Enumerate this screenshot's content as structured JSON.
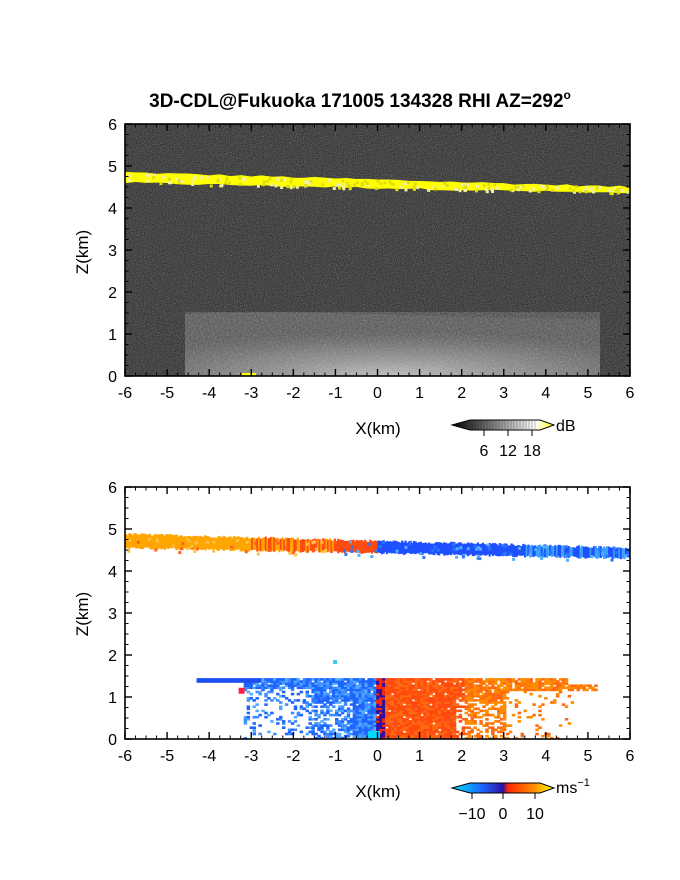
{
  "title": "3D-CDL@Fukuoka 171005 134328 RHI AZ=292",
  "title_superscript": "o",
  "chart_data": [
    {
      "type": "heatmap",
      "panel": "backscatter",
      "xlabel": "X(km)",
      "ylabel": "Z(km)",
      "xlim": [
        -6,
        6
      ],
      "ylim": [
        0,
        6
      ],
      "x_ticks": [
        "-6",
        "-5",
        "-4",
        "-3",
        "-2",
        "-1",
        "0",
        "1",
        "2",
        "3",
        "4",
        "5",
        "6"
      ],
      "y_ticks": [
        "0",
        "1",
        "2",
        "3",
        "4",
        "5",
        "6"
      ],
      "colorbar": {
        "unit": "dB",
        "ticks": [
          "6",
          "12",
          "18"
        ],
        "colors": [
          "#000000",
          "#ffffff",
          "#ffff00"
        ]
      },
      "background": "#1e1e1e",
      "cloud_layer": {
        "color": "#ffff00",
        "z_base": [
          4.6,
          4.35
        ],
        "z_top": [
          4.85,
          4.5
        ],
        "x_range": [
          -6,
          6
        ]
      },
      "boundary_layer": {
        "color": "#9a9a9a",
        "z_top": 1.5,
        "x_range": [
          -4.5,
          5.2
        ]
      }
    },
    {
      "type": "heatmap",
      "panel": "doppler_velocity",
      "xlabel": "X(km)",
      "ylabel": "Z(km)",
      "xlim": [
        -6,
        6
      ],
      "ylim": [
        0,
        6
      ],
      "x_ticks": [
        "-6",
        "-5",
        "-4",
        "-3",
        "-2",
        "-1",
        "0",
        "1",
        "2",
        "3",
        "4",
        "5",
        "6"
      ],
      "y_ticks": [
        "0",
        "1",
        "2",
        "3",
        "4",
        "5",
        "6"
      ],
      "colorbar": {
        "unit": "ms",
        "unit_superscript": "−1",
        "ticks": [
          "−10",
          "0",
          "10"
        ],
        "colors": [
          "#00e5ff",
          "#1e64ff",
          "#ff2800",
          "#ff8c00",
          "#ffff00"
        ]
      },
      "cloud_layer": {
        "colors": [
          "#ffa500",
          "#ff4a10",
          "#1e50ff",
          "#3ca0ff"
        ],
        "x_range": [
          -6,
          6
        ],
        "z_range": [
          4.3,
          4.9
        ]
      },
      "boundary_layer": {
        "colors": [
          "#1e64ff",
          "#ff4a10",
          "#ff8c00"
        ],
        "x_range": [
          -4.3,
          5.2
        ],
        "z_range": [
          0,
          1.45
        ]
      }
    }
  ]
}
